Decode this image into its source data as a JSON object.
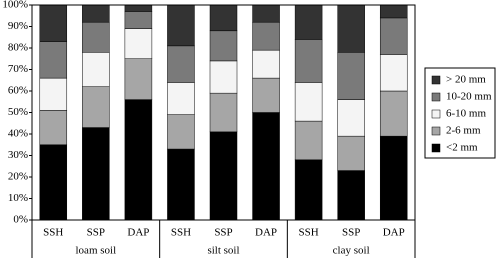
{
  "chart_data": {
    "type": "stacked_bar",
    "categories": [
      "SSH",
      "SSP",
      "DAP",
      "SSH",
      "SSP",
      "DAP",
      "SSH",
      "SSP",
      "DAP"
    ],
    "groups": [
      "loam soil",
      "silt soil",
      "clay soil"
    ],
    "series": [
      {
        "name": "<2 mm",
        "color": "#000000",
        "values": [
          35,
          43,
          56,
          33,
          41,
          50,
          28,
          23,
          39
        ]
      },
      {
        "name": "2-6 mm",
        "color": "#a6a6a6",
        "values": [
          16,
          19,
          19,
          16,
          18,
          16,
          18,
          16,
          21
        ]
      },
      {
        "name": "6-10 mm",
        "color": "#f4f4f4",
        "values": [
          15,
          16,
          14,
          15,
          15,
          13,
          18,
          17,
          17
        ]
      },
      {
        "name": "10-20 mm",
        "color": "#7a7a7a",
        "values": [
          17,
          14,
          8,
          17,
          14,
          13,
          20,
          22,
          17
        ]
      },
      {
        "name": "> 20 mm",
        "color": "#333333",
        "values": [
          17,
          8,
          3,
          19,
          12,
          8,
          16,
          22,
          6
        ]
      }
    ],
    "ylim": [
      0,
      100
    ],
    "yticks": [
      {
        "value": 0,
        "label": "0%"
      },
      {
        "value": 10,
        "label": "10%"
      },
      {
        "value": 20,
        "label": "20%"
      },
      {
        "value": 30,
        "label": "30%"
      },
      {
        "value": 40,
        "label": "40%"
      },
      {
        "value": 50,
        "label": "50%"
      },
      {
        "value": 60,
        "label": "60%"
      },
      {
        "value": 70,
        "label": "70%"
      },
      {
        "value": 80,
        "label": "80%"
      },
      {
        "value": 90,
        "label": "90%"
      },
      {
        "value": 100,
        "label": "100%"
      }
    ],
    "grid": false
  }
}
